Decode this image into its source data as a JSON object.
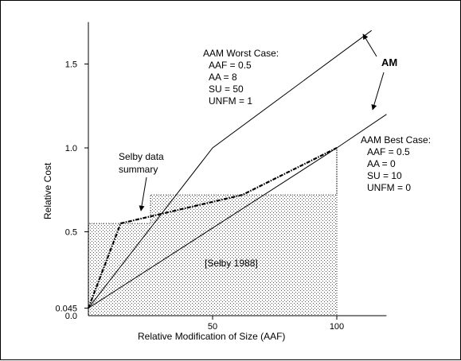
{
  "chart_data": {
    "type": "line",
    "xlabel": "Relative Modification of Size (AAF)",
    "ylabel": "Relative Cost",
    "xlim": [
      0,
      120
    ],
    "ylim": [
      0,
      1.75
    ],
    "x_ticks": [
      {
        "value": 50,
        "label": "50"
      },
      {
        "value": 100,
        "label": "100"
      }
    ],
    "y_ticks": [
      {
        "value": 0,
        "label": "0.0"
      },
      {
        "value": 0.045,
        "label": "0.045"
      },
      {
        "value": 0.5,
        "label": "0.5"
      },
      {
        "value": 1.0,
        "label": "1.0"
      },
      {
        "value": 1.5,
        "label": "1.5"
      }
    ],
    "series": [
      {
        "name": "AAM Worst Case",
        "style": "solid",
        "points": [
          [
            0,
            0.045
          ],
          [
            50,
            1.0
          ],
          [
            114,
            1.7
          ]
        ],
        "params": [
          "AAF = 0.5",
          "AA = 8",
          "SU = 50",
          "UNFM = 1"
        ]
      },
      {
        "name": "AAM Best Case",
        "style": "solid",
        "points": [
          [
            0,
            0.045
          ],
          [
            100,
            1.0
          ],
          [
            120,
            1.2
          ]
        ],
        "params": [
          "AAF = 0.5",
          "AA = 0",
          "SU = 10",
          "UNFM = 0"
        ]
      },
      {
        "name": "Selby data summary",
        "style": "dash-dot",
        "points": [
          [
            0,
            0.045
          ],
          [
            13,
            0.55
          ],
          [
            62,
            0.72
          ],
          [
            100,
            1.0
          ]
        ]
      }
    ],
    "regions": [
      {
        "label": "[Selby 1988]",
        "pattern": "dotted",
        "steps": [
          [
            0,
            0.55
          ],
          [
            25,
            0.72
          ],
          [
            100,
            1.0
          ]
        ]
      }
    ],
    "annotations": {
      "worst_case_title": "AAM Worst Case:",
      "best_case_title": "AAM Best Case:",
      "selby_line1": "Selby data",
      "selby_line2": "summary",
      "selby_box": "[Selby 1988]",
      "am": "AM"
    }
  }
}
